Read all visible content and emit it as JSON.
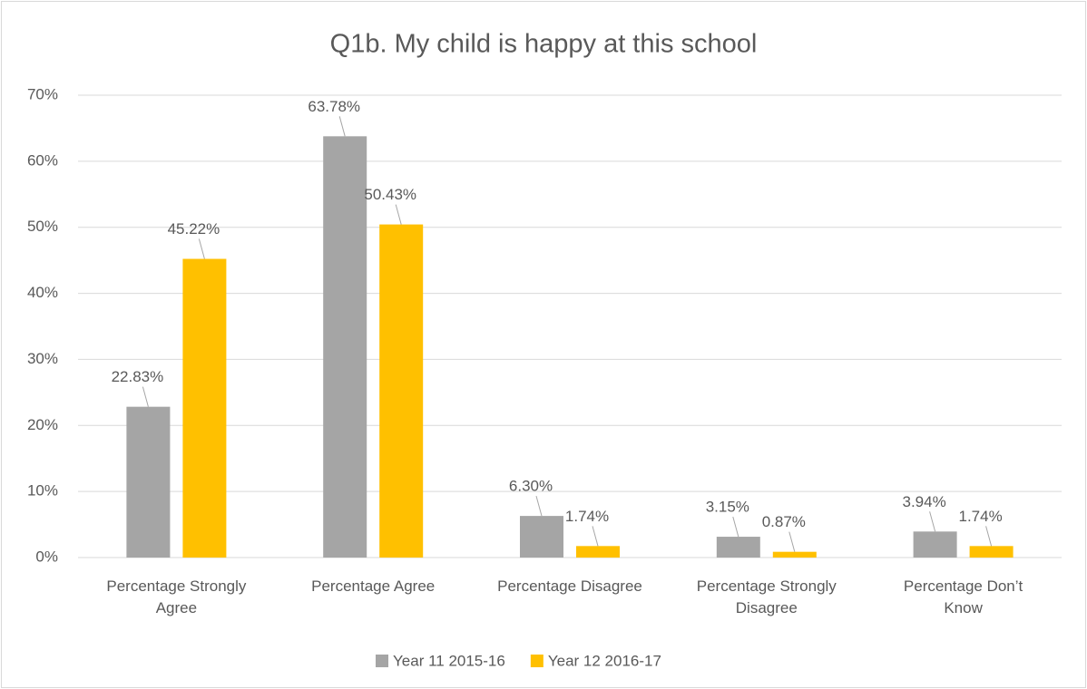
{
  "chart_data": {
    "type": "bar",
    "title": "Q1b. My child is happy at this school",
    "categories": [
      "Percentage Strongly Agree",
      "Percentage Agree",
      "Percentage Disagree",
      "Percentage Strongly Disagree",
      "Percentage Don’t Know"
    ],
    "series": [
      {
        "name": "Year 11 2015-16",
        "color": "#a5a5a5",
        "values": [
          22.83,
          63.78,
          6.3,
          3.15,
          3.94
        ],
        "value_labels": [
          "22.83%",
          "63.78%",
          "6.30%",
          "3.15%",
          "3.94%"
        ]
      },
      {
        "name": "Year 12 2016-17",
        "color": "#ffc000",
        "values": [
          45.22,
          50.43,
          1.74,
          0.87,
          1.74
        ],
        "value_labels": [
          "45.22%",
          "50.43%",
          "1.74%",
          "0.87%",
          "1.74%"
        ]
      }
    ],
    "ylim": [
      0,
      70
    ],
    "yticks": [
      {
        "value": 0,
        "label": "0%"
      },
      {
        "value": 10,
        "label": "10%"
      },
      {
        "value": 20,
        "label": "20%"
      },
      {
        "value": 30,
        "label": "30%"
      },
      {
        "value": 40,
        "label": "40%"
      },
      {
        "value": 50,
        "label": "50%"
      },
      {
        "value": 60,
        "label": "60%"
      },
      {
        "value": 70,
        "label": "70%"
      }
    ],
    "grid": true,
    "legend": "bottom"
  }
}
